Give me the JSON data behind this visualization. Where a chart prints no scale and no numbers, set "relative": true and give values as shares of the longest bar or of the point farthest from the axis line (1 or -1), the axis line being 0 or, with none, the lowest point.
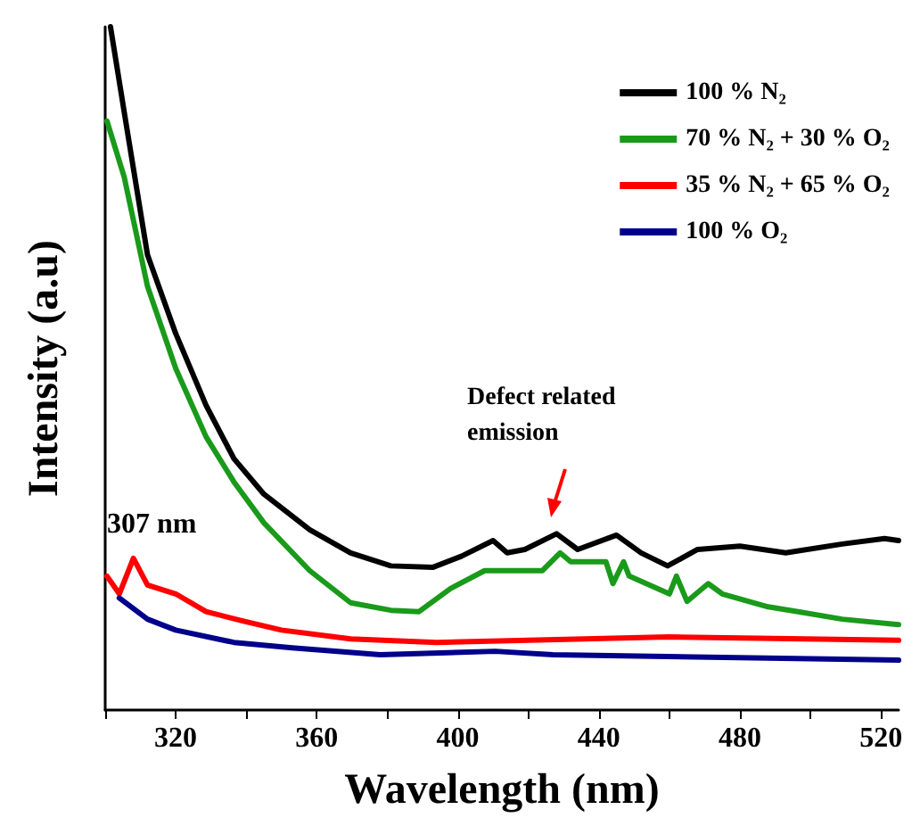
{
  "chart_data": {
    "type": "line",
    "relative": true,
    "xlabel": "Wavelength (nm)",
    "ylabel": "Intensity (a.u)",
    "xlim": [
      300,
      525
    ],
    "xticks": [
      {
        "value": 300,
        "label": null
      },
      320,
      {
        "value": 340,
        "label": null
      },
      360,
      {
        "value": 380,
        "label": null
      },
      400,
      {
        "value": 420,
        "label": null
      },
      440,
      {
        "value": 460,
        "label": null
      },
      480,
      {
        "value": 500,
        "label": null
      },
      520
    ],
    "legend": "top right",
    "marker": "none",
    "line_style": "solid",
    "grid": false,
    "annotations": [
      "Defect related emission",
      "307 nm"
    ],
    "series": [
      {
        "name": "100 % N₂",
        "color": "#000000",
        "x": [
          301.5,
          305.4,
          312,
          320,
          328.6,
          336.5,
          345,
          358,
          369.6,
          381,
          393,
          401,
          410,
          414,
          419,
          428,
          434,
          445,
          452,
          459.5,
          468,
          480,
          493,
          509,
          521,
          525
        ],
        "values": [
          1.0,
          0.875,
          0.666,
          0.551,
          0.446,
          0.368,
          0.316,
          0.264,
          0.23,
          0.211,
          0.209,
          0.225,
          0.248,
          0.23,
          0.235,
          0.258,
          0.235,
          0.256,
          0.23,
          0.211,
          0.235,
          0.24,
          0.23,
          0.243,
          0.251,
          0.248
        ]
      },
      {
        "name": "70 % N₂ + 30 % O₂",
        "color": "#1a9a1a",
        "x": [
          300.5,
          305.4,
          312,
          320,
          328.6,
          336.5,
          345,
          358,
          369.6,
          381,
          389,
          398,
          407.6,
          410.6,
          424,
          429,
          432,
          442,
          444,
          447,
          448.6,
          460,
          462,
          465,
          471,
          475,
          488,
          496.5,
          509,
          525
        ],
        "values": [
          0.862,
          0.78,
          0.62,
          0.5,
          0.4,
          0.334,
          0.274,
          0.204,
          0.157,
          0.146,
          0.144,
          0.178,
          0.204,
          0.204,
          0.204,
          0.23,
          0.217,
          0.217,
          0.185,
          0.217,
          0.196,
          0.17,
          0.196,
          0.159,
          0.185,
          0.17,
          0.151,
          0.144,
          0.133,
          0.125
        ]
      },
      {
        "name": "35 % N₂ + 65 % O₂",
        "color": "#ff0000",
        "x": [
          300.5,
          304,
          308,
          312,
          320,
          328.6,
          338.5,
          350,
          369.6,
          394,
          460,
          525
        ],
        "values": [
          0.196,
          0.17,
          0.222,
          0.183,
          0.17,
          0.144,
          0.131,
          0.117,
          0.104,
          0.099,
          0.107,
          0.102
        ]
      },
      {
        "name": "100 % O₂",
        "color": "#00008b",
        "x": [
          304,
          312,
          320,
          336.5,
          353,
          378,
          410.6,
          427,
          525
        ],
        "values": [
          0.164,
          0.133,
          0.117,
          0.099,
          0.091,
          0.081,
          0.086,
          0.081,
          0.073
        ]
      }
    ]
  }
}
